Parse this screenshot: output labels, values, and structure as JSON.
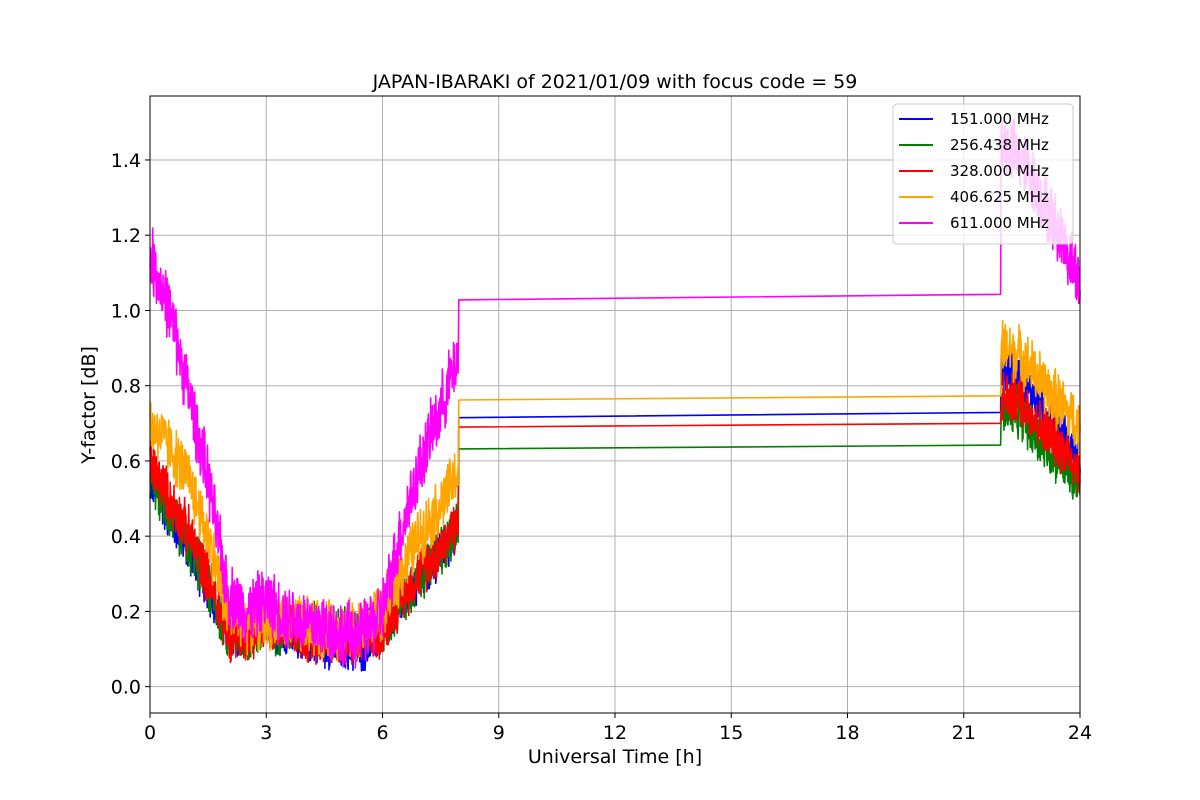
{
  "chart_data": {
    "type": "line",
    "title": "JAPAN-IBARAKI of 2021/01/09 with focus code = 59",
    "xlabel": "Universal Time [h]",
    "ylabel": "Y-factor [dB]",
    "xlim": [
      0,
      24
    ],
    "ylim": [
      -0.07,
      1.57
    ],
    "xticks": [
      0,
      3,
      6,
      9,
      12,
      15,
      18,
      21,
      24
    ],
    "xtick_labels": [
      "0",
      "3",
      "6",
      "9",
      "12",
      "15",
      "18",
      "21",
      "24"
    ],
    "yticks": [
      0.0,
      0.2,
      0.4,
      0.6,
      0.8,
      1.0,
      1.2,
      1.4
    ],
    "ytick_labels": [
      "0.0",
      "0.2",
      "0.4",
      "0.6",
      "0.8",
      "1.0",
      "1.2",
      "1.4"
    ],
    "grid": true,
    "legend_position": "top-right",
    "series": [
      {
        "name": "151.000 MHz",
        "color": "#0000ff",
        "noise": 0.035,
        "points": [
          [
            0,
            0.55
          ],
          [
            0.5,
            0.45
          ],
          [
            1,
            0.36
          ],
          [
            1.5,
            0.26
          ],
          [
            2,
            0.14
          ],
          [
            2.5,
            0.13
          ],
          [
            3,
            0.16
          ],
          [
            3.5,
            0.14
          ],
          [
            4,
            0.13
          ],
          [
            4.5,
            0.11
          ],
          [
            5,
            0.1
          ],
          [
            5.5,
            0.1
          ],
          [
            6,
            0.14
          ],
          [
            6.5,
            0.22
          ],
          [
            7,
            0.29
          ],
          [
            7.5,
            0.35
          ],
          [
            7.95,
            0.42
          ]
        ],
        "flat": [
          [
            7.97,
            0.715
          ],
          [
            21.95,
            0.729
          ]
        ],
        "tail": [
          [
            21.97,
            0.84
          ],
          [
            22.5,
            0.82
          ],
          [
            23,
            0.74
          ],
          [
            23.5,
            0.68
          ],
          [
            24,
            0.6
          ]
        ]
      },
      {
        "name": "256.438 MHz",
        "color": "#008000",
        "noise": 0.04,
        "points": [
          [
            0,
            0.56
          ],
          [
            0.5,
            0.46
          ],
          [
            1,
            0.38
          ],
          [
            1.5,
            0.27
          ],
          [
            2,
            0.14
          ],
          [
            2.5,
            0.13
          ],
          [
            3,
            0.16
          ],
          [
            3.5,
            0.15
          ],
          [
            4,
            0.16
          ],
          [
            4.5,
            0.16
          ],
          [
            5,
            0.14
          ],
          [
            5.5,
            0.14
          ],
          [
            6,
            0.15
          ],
          [
            6.5,
            0.23
          ],
          [
            7,
            0.3
          ],
          [
            7.5,
            0.36
          ],
          [
            7.95,
            0.43
          ]
        ],
        "flat": [
          [
            7.97,
            0.632
          ],
          [
            21.95,
            0.642
          ]
        ],
        "tail": [
          [
            21.97,
            0.74
          ],
          [
            22.5,
            0.72
          ],
          [
            23,
            0.65
          ],
          [
            23.5,
            0.6
          ],
          [
            24,
            0.53
          ]
        ]
      },
      {
        "name": "328.000 MHz",
        "color": "#ff0000",
        "noise": 0.04,
        "points": [
          [
            0,
            0.6
          ],
          [
            0.5,
            0.5
          ],
          [
            1,
            0.41
          ],
          [
            1.5,
            0.29
          ],
          [
            2,
            0.14
          ],
          [
            2.5,
            0.14
          ],
          [
            3,
            0.17
          ],
          [
            3.5,
            0.15
          ],
          [
            4,
            0.14
          ],
          [
            4.5,
            0.13
          ],
          [
            5,
            0.12
          ],
          [
            5.5,
            0.12
          ],
          [
            6,
            0.15
          ],
          [
            6.5,
            0.24
          ],
          [
            7,
            0.31
          ],
          [
            7.5,
            0.37
          ],
          [
            7.95,
            0.44
          ]
        ],
        "flat": [
          [
            7.97,
            0.69
          ],
          [
            21.95,
            0.7
          ]
        ],
        "tail": [
          [
            21.97,
            0.77
          ],
          [
            22.5,
            0.76
          ],
          [
            23,
            0.69
          ],
          [
            23.5,
            0.64
          ],
          [
            24,
            0.58
          ]
        ]
      },
      {
        "name": "406.625 MHz",
        "color": "#ffa500",
        "noise": 0.045,
        "points": [
          [
            0,
            0.7
          ],
          [
            0.5,
            0.64
          ],
          [
            1,
            0.55
          ],
          [
            1.5,
            0.4
          ],
          [
            2,
            0.2
          ],
          [
            2.5,
            0.17
          ],
          [
            3,
            0.18
          ],
          [
            3.5,
            0.17
          ],
          [
            4,
            0.16
          ],
          [
            4.5,
            0.15
          ],
          [
            5,
            0.15
          ],
          [
            5.5,
            0.16
          ],
          [
            6,
            0.2
          ],
          [
            6.5,
            0.31
          ],
          [
            7,
            0.41
          ],
          [
            7.5,
            0.48
          ],
          [
            7.95,
            0.57
          ]
        ],
        "flat": [
          [
            7.97,
            0.762
          ],
          [
            21.95,
            0.773
          ]
        ],
        "tail": [
          [
            21.97,
            0.9
          ],
          [
            22.5,
            0.88
          ],
          [
            23,
            0.81
          ],
          [
            23.5,
            0.75
          ],
          [
            24,
            0.69
          ]
        ]
      },
      {
        "name": "611.000 MHz",
        "color": "#ff00ff",
        "noise": 0.05,
        "points": [
          [
            0,
            1.15
          ],
          [
            0.5,
            1.0
          ],
          [
            1,
            0.78
          ],
          [
            1.5,
            0.55
          ],
          [
            2,
            0.25
          ],
          [
            2.5,
            0.2
          ],
          [
            3,
            0.23
          ],
          [
            3.5,
            0.19
          ],
          [
            4,
            0.17
          ],
          [
            4.5,
            0.16
          ],
          [
            5,
            0.14
          ],
          [
            5.5,
            0.14
          ],
          [
            6,
            0.2
          ],
          [
            6.5,
            0.42
          ],
          [
            7,
            0.6
          ],
          [
            7.5,
            0.74
          ],
          [
            7.95,
            0.88
          ]
        ],
        "flat": [
          [
            7.97,
            1.028
          ],
          [
            21.95,
            1.043
          ]
        ],
        "tail": [
          [
            21.97,
            1.45
          ],
          [
            22.5,
            1.4
          ],
          [
            23,
            1.3
          ],
          [
            23.5,
            1.2
          ],
          [
            24,
            1.07
          ]
        ]
      }
    ]
  }
}
